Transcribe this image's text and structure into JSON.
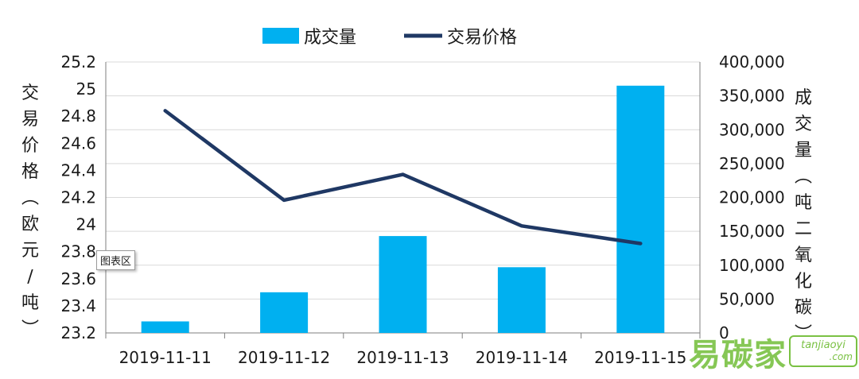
{
  "chart_data": {
    "type": "bar+line",
    "categories": [
      "2019-11-11",
      "2019-11-12",
      "2019-11-13",
      "2019-11-14",
      "2019-11-15"
    ],
    "series": [
      {
        "name": "成交量",
        "type": "bar",
        "axis": "right",
        "color": "#00b0f0",
        "values": [
          17000,
          60000,
          143000,
          97000,
          365000
        ]
      },
      {
        "name": "交易价格",
        "type": "line",
        "axis": "left",
        "color": "#1f3864",
        "values": [
          24.84,
          24.18,
          24.37,
          23.99,
          23.86
        ]
      }
    ],
    "y_left": {
      "label": "交易价格（欧元/吨）",
      "ylim": [
        23.2,
        25.2
      ],
      "ticks": [
        "23.2",
        "23.4",
        "23.6",
        "23.8",
        "24",
        "24.2",
        "24.4",
        "24.6",
        "24.8",
        "25",
        "25.2"
      ]
    },
    "y_right": {
      "label": "成交量（吨二氧化碳）",
      "ylim": [
        0,
        400000
      ],
      "ticks": [
        "0",
        "50,000",
        "100,000",
        "150,000",
        "200,000",
        "250,000",
        "300,000",
        "350,000",
        "400,000"
      ]
    },
    "legend_position": "top",
    "grid": "horizontal"
  },
  "tooltip": "图表区",
  "logo": {
    "text": "易碳家",
    "badge_line1": "tanjiaoyi",
    "badge_line2": ".com"
  },
  "colors": {
    "bar": "#00b0f0",
    "line": "#1f3864",
    "grid": "#d9d9d9",
    "axis": "#7f7f7f"
  }
}
